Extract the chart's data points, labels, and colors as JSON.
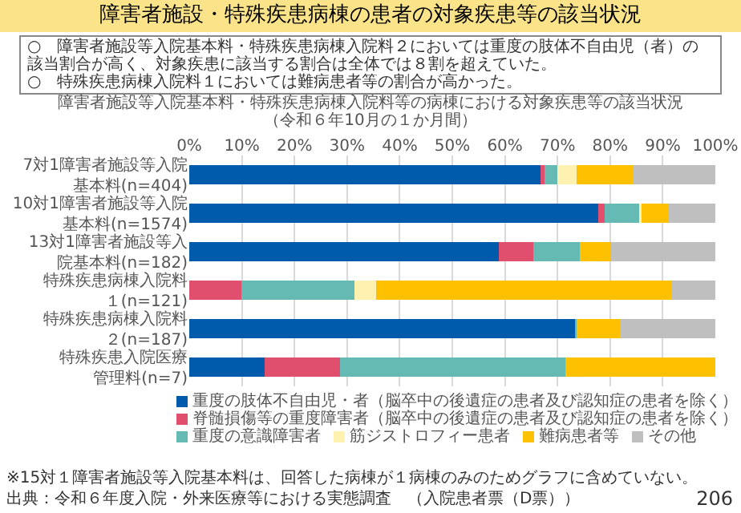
{
  "chart_data": {
    "type": "bar",
    "orientation": "horizontal",
    "stacked": true,
    "title": "障害者施設・特殊疾患病棟の患者の対象疾患等の該当状況",
    "annotations": [
      "○　障害者施設等入院基本料・特殊疾患病棟入院料２においては重度の肢体不自由児（者）の該当割合が高く、対象疾患に該当する割合は全体では８割を超えていた。",
      "○　特殊疾患病棟入院料１においては難病患者等の割合が高かった。",
      "障害者施設等入院基本料・特殊疾患病棟入院料等の病棟における対象疾患等の該当状況",
      "（令和６年10月の１か月間）",
      "※15対１障害者施設等入院基本料は、回答した病棟が１病棟のみのためグラフに含めていない。",
      "出典：令和６年度入院・外来医療等における実態調査　（入院患者票（D票））",
      "206"
    ],
    "categories": [
      "7対1障害者施設等入院基本料(n=404)",
      "10対1障害者施設等入院基本料(n=1574)",
      "13対1障害者施設等入院基本料(n=182)",
      "特殊疾患病棟入院料１(n=121)",
      "特殊疾患病棟入院料２(n=187)",
      "特殊疾患入院医療管理料(n=7)"
    ],
    "series": [
      {
        "name": "重度の肢体不自由児・者（脳卒中の後遺症の患者及び認知症の患者を除く）",
        "color": "#005bac",
        "values": [
          66.8,
          77.7,
          58.8,
          0,
          73.3,
          14.3
        ]
      },
      {
        "name": "脊髄損傷等の重度障害者（脳卒中の後遺症の患者及び認知症の患者を除く）",
        "color": "#e0506e",
        "values": [
          0.7,
          1.3,
          6.6,
          9.9,
          0,
          14.3
        ]
      },
      {
        "name": "重度の意識障害者",
        "color": "#66bab4",
        "values": [
          2.5,
          6.5,
          8.8,
          21.5,
          0.3,
          42.9
        ]
      },
      {
        "name": "筋ジストロフィー患者",
        "color": "#fff2b0",
        "values": [
          3.7,
          0.5,
          0,
          4.1,
          0,
          0
        ]
      },
      {
        "name": "難病患者等",
        "color": "#ffc000",
        "values": [
          10.6,
          5.2,
          6.0,
          56.2,
          8.3,
          28.5
        ]
      },
      {
        "name": "その他",
        "color": "#bfbfbf",
        "values": [
          15.7,
          8.8,
          19.8,
          8.3,
          18.1,
          0
        ]
      }
    ],
    "xlim": [
      0,
      100
    ],
    "xticks": [
      {
        "value": 0,
        "label": "0%"
      },
      {
        "value": 10,
        "label": "10%"
      },
      {
        "value": 20,
        "label": "20%"
      },
      {
        "value": 30,
        "label": "30%"
      },
      {
        "value": 40,
        "label": "40%"
      },
      {
        "value": 50,
        "label": "50%"
      },
      {
        "value": 60,
        "label": "60%"
      },
      {
        "value": 70,
        "label": "70%"
      },
      {
        "value": 80,
        "label": "80%"
      },
      {
        "value": 90,
        "label": "90%"
      },
      {
        "value": 100,
        "label": "100%"
      }
    ],
    "grid": "x",
    "legend": "bottom"
  }
}
